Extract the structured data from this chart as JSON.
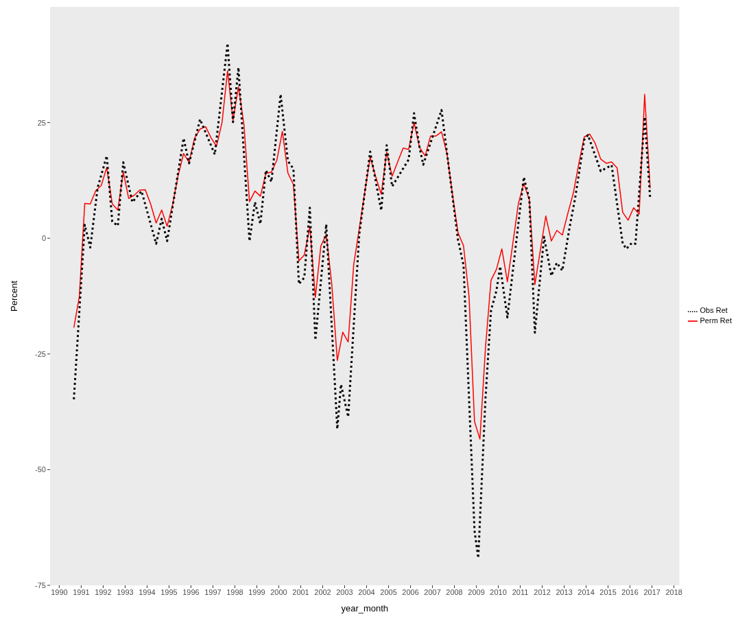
{
  "chart_data": {
    "type": "line",
    "xlabel": "year_month",
    "ylabel": "Percent",
    "xlim": [
      "1989-08",
      "2018-04"
    ],
    "ylim": [
      -75,
      50
    ],
    "xticks": [
      "1990",
      "1991",
      "1992",
      "1993",
      "1994",
      "1995",
      "1996",
      "1997",
      "1998",
      "1999",
      "2000",
      "2001",
      "2002",
      "2003",
      "2004",
      "2005",
      "2006",
      "2007",
      "2008",
      "2009",
      "2010",
      "2011",
      "2012",
      "2013",
      "2014",
      "2015",
      "2016",
      "2017",
      "2018"
    ],
    "yticks": [
      -75,
      -50,
      -25,
      0,
      25
    ],
    "grid": false,
    "legend": "right",
    "marker": "none",
    "series": [
      {
        "name": "Perm Ret",
        "color": "#ff0000",
        "line_style": "solid",
        "x": [
          "1990-09",
          "1990-12",
          "1991-03",
          "1991-06",
          "1991-09",
          "1991-12",
          "1992-03",
          "1992-06",
          "1992-09",
          "1992-12",
          "1993-03",
          "1993-06",
          "1993-09",
          "1993-12",
          "1994-03",
          "1994-06",
          "1994-09",
          "1994-12",
          "1995-03",
          "1995-06",
          "1995-09",
          "1995-12",
          "1996-03",
          "1996-06",
          "1996-09",
          "1996-12",
          "1997-03",
          "1997-06",
          "1997-09",
          "1997-12",
          "1998-03",
          "1998-06",
          "1998-09",
          "1998-12",
          "1999-03",
          "1999-06",
          "1999-09",
          "1999-12",
          "2000-03",
          "2000-06",
          "2000-09",
          "2000-12",
          "2001-03",
          "2001-06",
          "2001-09",
          "2001-12",
          "2002-03",
          "2002-06",
          "2002-09",
          "2002-12",
          "2003-03",
          "2003-06",
          "2003-09",
          "2003-12",
          "2004-03",
          "2004-06",
          "2004-09",
          "2004-12",
          "2005-03",
          "2005-06",
          "2005-09",
          "2005-12",
          "2006-03",
          "2006-06",
          "2006-09",
          "2006-12",
          "2007-03",
          "2007-06",
          "2007-09",
          "2007-12",
          "2008-03",
          "2008-06",
          "2008-09",
          "2008-12",
          "2009-03",
          "2009-06",
          "2009-09",
          "2009-12",
          "2010-03",
          "2010-06",
          "2010-09",
          "2010-12",
          "2011-03",
          "2011-06",
          "2011-09",
          "2011-12",
          "2012-03",
          "2012-06",
          "2012-09",
          "2012-12",
          "2013-03",
          "2013-06",
          "2013-09",
          "2013-12",
          "2014-03",
          "2014-06",
          "2014-09",
          "2014-12",
          "2015-03",
          "2015-06",
          "2015-09",
          "2015-12",
          "2016-03",
          "2016-06",
          "2016-09",
          "2016-12"
        ],
        "values": [
          -19.3,
          -12.6,
          7.5,
          7.4,
          10.3,
          11.4,
          15.3,
          7.4,
          6.1,
          14.3,
          8.6,
          9.3,
          10.4,
          10.5,
          7.4,
          3.3,
          6.1,
          2.6,
          7.2,
          13.5,
          18.3,
          16.4,
          21.6,
          23.6,
          24.1,
          21.7,
          19.9,
          25.0,
          36.2,
          25.5,
          32.7,
          24.5,
          7.9,
          10.2,
          9.1,
          14.0,
          14.3,
          16.9,
          23.1,
          14.1,
          11.6,
          -4.9,
          -3.6,
          2.5,
          -12.8,
          -1.7,
          0.8,
          -9.9,
          -26.4,
          -20.3,
          -22.4,
          -5.7,
          2.0,
          9.9,
          17.5,
          13.3,
          9.5,
          18.6,
          13.4,
          16.5,
          19.5,
          19.2,
          25.0,
          19.6,
          17.8,
          22.1,
          22.1,
          23.0,
          18.2,
          9.4,
          1.2,
          -1.6,
          -12.6,
          -39.6,
          -43.4,
          -23.7,
          -9.1,
          -6.7,
          -2.3,
          -9.4,
          -1.0,
          7.5,
          11.9,
          8.3,
          -10.0,
          -2.6,
          4.8,
          -0.6,
          1.7,
          0.7,
          5.3,
          9.7,
          16.1,
          21.9,
          22.5,
          20.5,
          17.1,
          16.2,
          16.5,
          15.2,
          5.6,
          3.9,
          6.6,
          5.2,
          31.1,
          10.8
        ]
      },
      {
        "name": "Obs Ret",
        "color": "#000000",
        "line_style": "dotted",
        "x": [
          "1990-09",
          "1991-03",
          "1991-06",
          "1991-10",
          "1992-03",
          "1992-06",
          "1992-09",
          "1992-12",
          "1993-05",
          "1993-10",
          "1994-06",
          "1994-09",
          "1994-12",
          "1995-06",
          "1995-09",
          "1995-12",
          "1996-06",
          "1997-02",
          "1997-09",
          "1997-12",
          "1998-03",
          "1998-09",
          "1998-12",
          "1999-03",
          "1999-06",
          "1999-09",
          "2000-02",
          "2000-06",
          "2000-09",
          "2000-12",
          "2001-03",
          "2001-06",
          "2001-09",
          "2002-03",
          "2002-09",
          "2002-11",
          "2003-03",
          "2003-09",
          "2004-03",
          "2004-09",
          "2004-12",
          "2005-03",
          "2005-12",
          "2006-03",
          "2006-06",
          "2006-08",
          "2007-06",
          "2008-03",
          "2008-06",
          "2008-12",
          "2009-02",
          "2009-06",
          "2009-09",
          "2009-12",
          "2010-02",
          "2010-06",
          "2011-03",
          "2011-06",
          "2011-09",
          "2012-02",
          "2012-06",
          "2012-09",
          "2012-12",
          "2013-04",
          "2013-07",
          "2013-12",
          "2014-02",
          "2014-09",
          "2015-03",
          "2015-09",
          "2015-11",
          "2016-02",
          "2016-04",
          "2016-09",
          "2016-12"
        ],
        "values": [
          -34.8,
          2.9,
          -2.0,
          10.9,
          17.8,
          3.6,
          2.7,
          16.4,
          7.8,
          10.2,
          -1.2,
          4.2,
          -0.6,
          14.2,
          21.6,
          16.2,
          25.7,
          18.1,
          42.1,
          25.1,
          36.9,
          -0.6,
          7.8,
          3.1,
          14.7,
          12.2,
          31.1,
          16.7,
          15.0,
          -9.9,
          -8.5,
          6.6,
          -22.0,
          3.0,
          -41.2,
          -31.6,
          -38.6,
          0.8,
          18.7,
          6.0,
          20.1,
          11.2,
          17.0,
          27.0,
          19.6,
          15.9,
          27.7,
          -0.3,
          -5.8,
          -63.2,
          -69.1,
          -34.7,
          -15.6,
          -11.3,
          -6.1,
          -17.1,
          13.2,
          8.5,
          -20.4,
          0.3,
          -8.1,
          -5.3,
          -7.0,
          2.4,
          8.6,
          21.3,
          22.3,
          14.5,
          15.8,
          -1.1,
          -2.3,
          -1.0,
          -1.2,
          26.2,
          8.6
        ]
      }
    ]
  }
}
